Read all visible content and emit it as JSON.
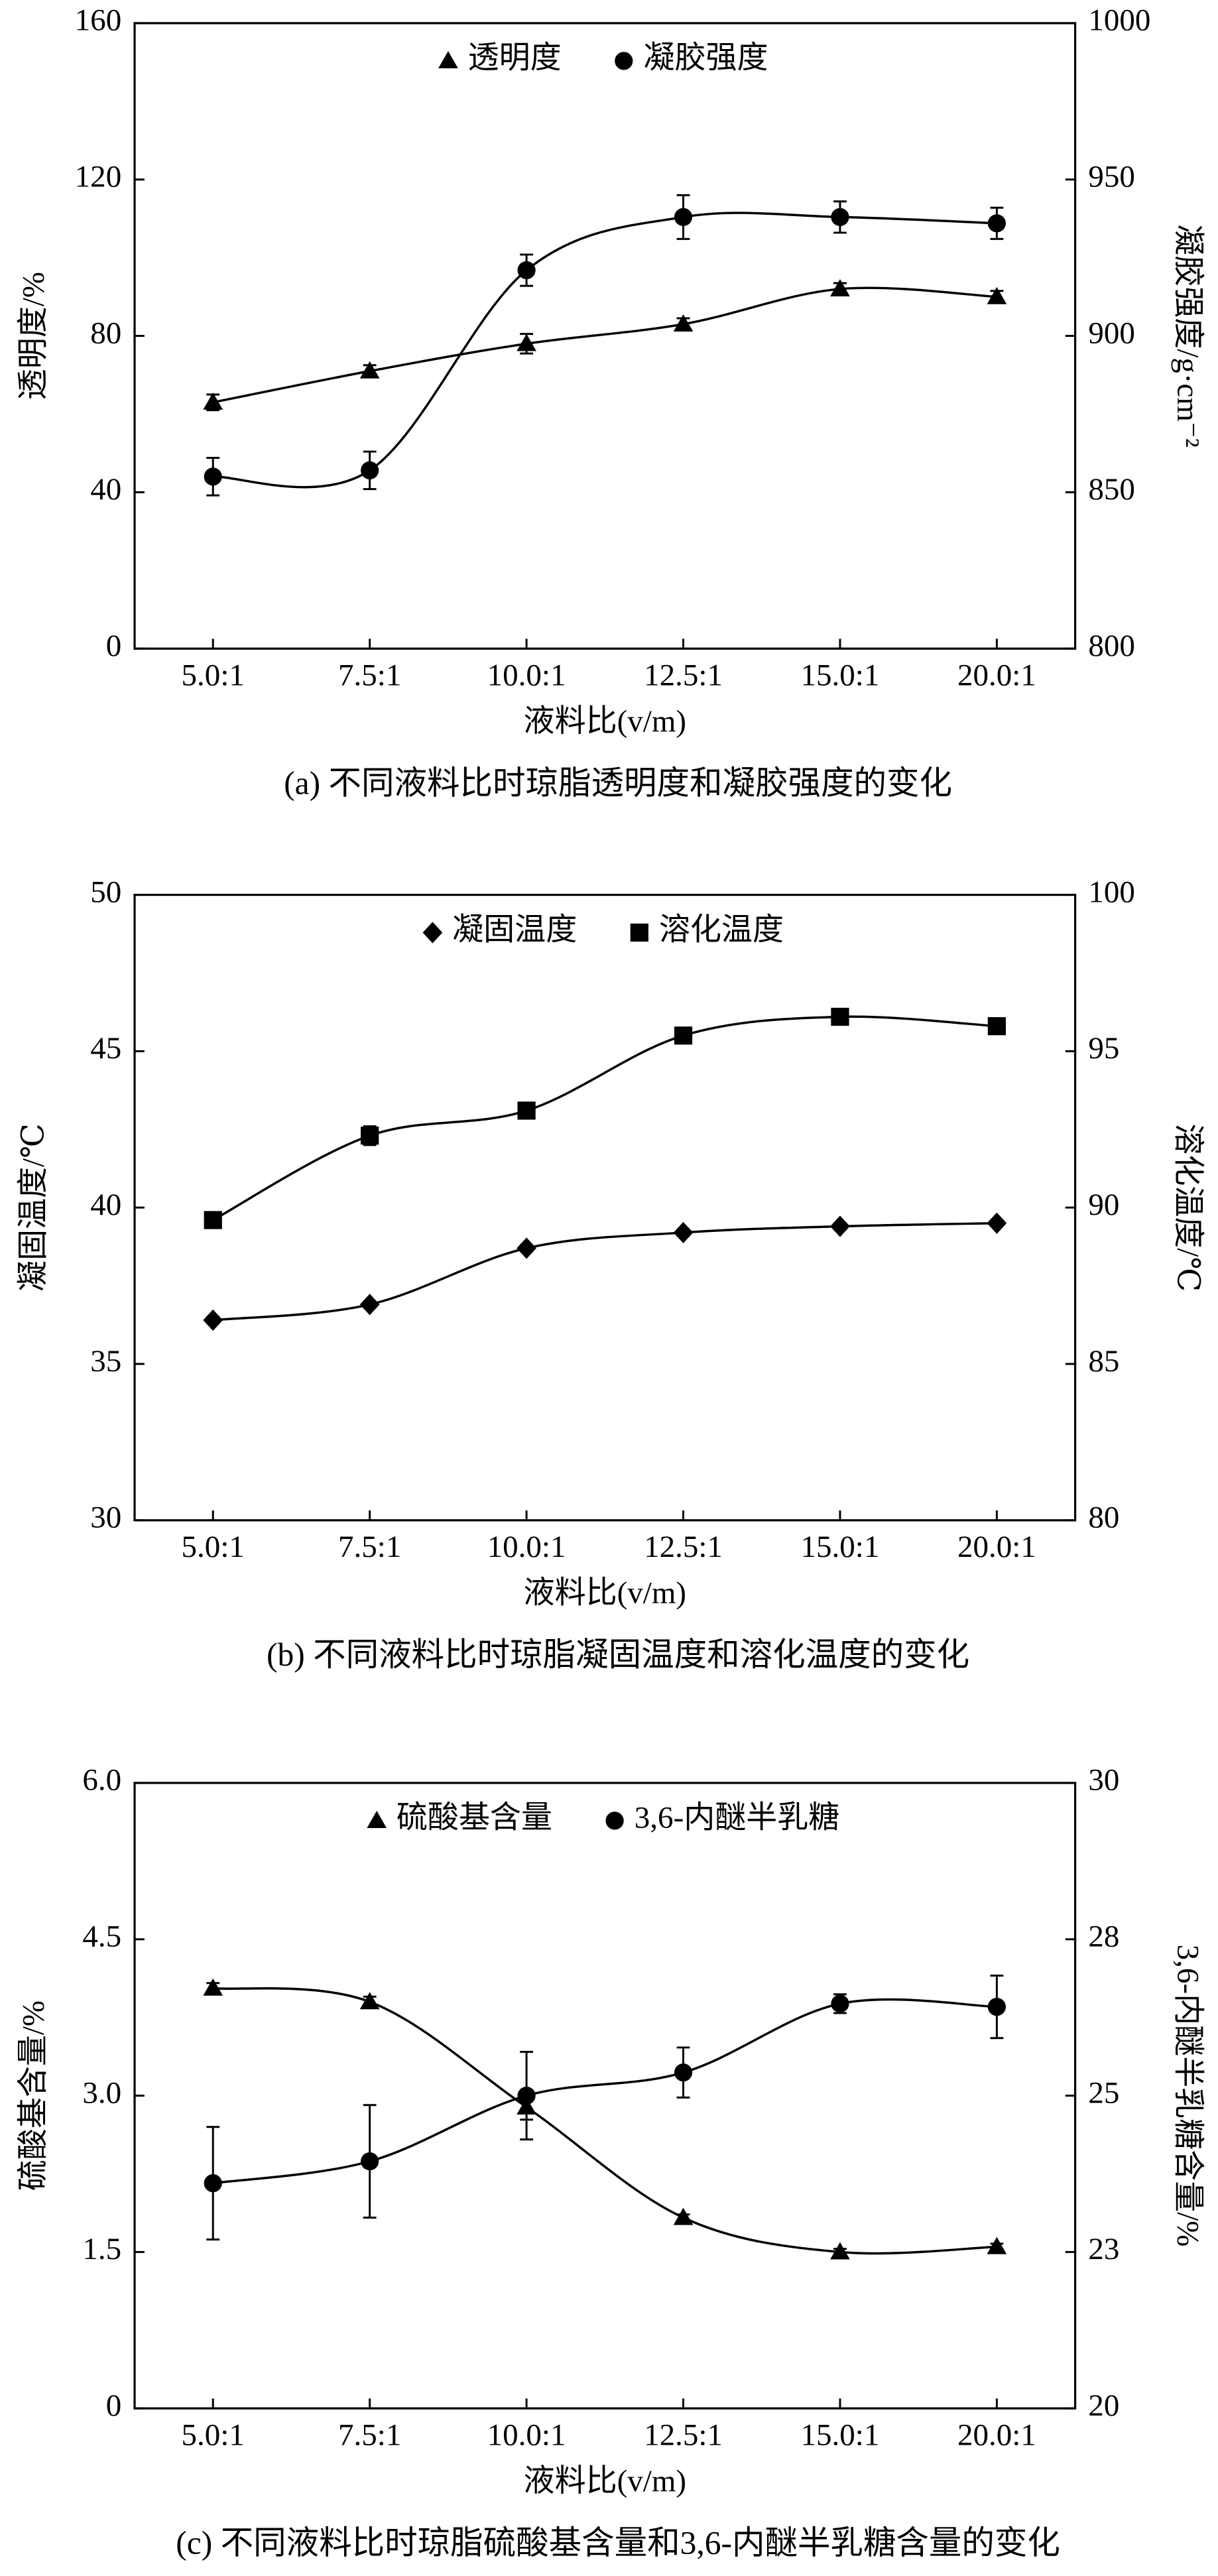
{
  "chart_data": [
    {
      "type": "line",
      "caption": "(a) 不同液料比时琼脂透明度和凝胶强度的变化",
      "x_label": "液料比(v/m)",
      "y_label": "透明度/%",
      "y2_label": "凝胶强度/g·cm⁻²",
      "categories": [
        "5.0:1",
        "7.5:1",
        "10.0:1",
        "12.5:1",
        "15.0:1",
        "20.0:1"
      ],
      "ylim": [
        0,
        160
      ],
      "yticks": [
        0,
        40,
        80,
        120,
        160
      ],
      "y2lim": [
        800,
        1000
      ],
      "y2ticks": [
        800,
        850,
        900,
        950,
        1000
      ],
      "legend": "upper center",
      "series": [
        {
          "name": "透明度",
          "marker": "triangle",
          "color": "#000000",
          "values": [
            63,
            71,
            78,
            83,
            92,
            90
          ],
          "errors": [
            2,
            1.5,
            2.5,
            1.5,
            1.5,
            1.5
          ]
        },
        {
          "name": "凝胶强度",
          "marker": "circle",
          "color": "#000000",
          "axis": "y2",
          "values": [
            855,
            857,
            921,
            938,
            938,
            936
          ],
          "errors": [
            6,
            6,
            5,
            7,
            5,
            5
          ]
        }
      ]
    },
    {
      "type": "line",
      "caption": "(b) 不同液料比时琼脂凝固温度和溶化温度的变化",
      "x_label": "液料比(v/m)",
      "y_label": "凝固温度/℃",
      "y2_label": "溶化温度/℃",
      "categories": [
        "5.0:1",
        "7.5:1",
        "10.0:1",
        "12.5:1",
        "15.0:1",
        "20.0:1"
      ],
      "ylim": [
        30,
        50
      ],
      "yticks": [
        30,
        35,
        40,
        45,
        50
      ],
      "y2lim": [
        80,
        100
      ],
      "y2ticks": [
        80,
        85,
        90,
        95,
        100
      ],
      "legend": "upper center",
      "series": [
        {
          "name": "凝固温度",
          "marker": "diamond",
          "color": "#000000",
          "values": [
            36.4,
            36.9,
            38.7,
            39.2,
            39.4,
            39.5
          ],
          "errors": [
            0.1,
            0.1,
            0.1,
            0.1,
            0.1,
            0.1
          ]
        },
        {
          "name": "溶化温度",
          "marker": "square",
          "color": "#000000",
          "axis": "y2",
          "values": [
            89.6,
            92.3,
            93.1,
            95.5,
            96.1,
            95.8
          ],
          "errors": [
            0.1,
            0.3,
            0.1,
            0.1,
            0.1,
            0.1
          ]
        }
      ]
    },
    {
      "type": "line",
      "caption": "(c) 不同液料比时琼脂硫酸基含量和3,6-内醚半乳糖含量的变化",
      "x_label": "液料比(v/m)",
      "y_label": "硫酸基含量/%",
      "y2_label": "3,6-内醚半乳糖含量/%",
      "categories": [
        "5.0:1",
        "7.5:1",
        "10.0:1",
        "12.5:1",
        "15.0:1",
        "20.0:1"
      ],
      "ylim": [
        0,
        6
      ],
      "yticks": [
        0,
        1.5,
        {
          "value": 3,
          "label": "3.0"
        },
        4.5,
        {
          "value": 6,
          "label": "6.0"
        }
      ],
      "y2lim": [
        20,
        30
      ],
      "y2ticks": [
        20,
        {
          "value": 22.5,
          "label": "23"
        },
        25,
        {
          "value": 27.5,
          "label": "28"
        },
        30
      ],
      "legend": "upper center",
      "series": [
        {
          "name": "硫酸基含量",
          "marker": "triangle",
          "color": "#000000",
          "values": [
            4.03,
            3.9,
            2.89,
            1.83,
            1.5,
            1.55
          ],
          "errors": [
            0.05,
            0.05,
            0.12,
            0.03,
            0.03,
            0.03
          ]
        },
        {
          "name": "3,6-内醚半乳糖",
          "marker": "circle",
          "color": "#000000",
          "axis": "y2",
          "values": [
            23.6,
            23.95,
            25.0,
            25.37,
            26.47,
            26.42
          ],
          "errors": [
            0.9,
            0.9,
            0.7,
            0.4,
            0.15,
            0.5
          ]
        }
      ]
    }
  ]
}
